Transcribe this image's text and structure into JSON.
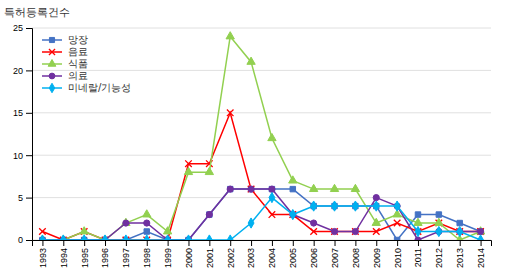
{
  "chart_data": {
    "type": "line",
    "ylabel": "특허등록건수",
    "x": [
      1993,
      1994,
      1995,
      1996,
      1997,
      1998,
      1999,
      2000,
      2001,
      2002,
      2003,
      2004,
      2005,
      2006,
      2007,
      2008,
      2009,
      2010,
      2011,
      2012,
      2013,
      2014
    ],
    "xlim": [
      1992.5,
      2014.5
    ],
    "xticks": [
      1993,
      1994,
      1995,
      1996,
      1997,
      1998,
      1999,
      2000,
      2001,
      2002,
      2003,
      2004,
      2005,
      2006,
      2007,
      2008,
      2009,
      2010,
      2011,
      2012,
      2013,
      2014
    ],
    "ylim": [
      0,
      25
    ],
    "yticks": [
      0,
      5,
      10,
      15,
      20,
      25
    ],
    "grid": true,
    "legend": "upper left",
    "series": [
      {
        "name": "망장",
        "color": "#4472C4",
        "marker": "square",
        "values": [
          0,
          0,
          0,
          0,
          0,
          1,
          0,
          0,
          3,
          6,
          6,
          6,
          6,
          4,
          4,
          4,
          4,
          0,
          3,
          3,
          2,
          1
        ]
      },
      {
        "name": "음료",
        "color": "#FF0000",
        "marker": "x",
        "values": [
          1,
          0,
          1,
          0,
          0,
          0,
          0,
          9,
          9,
          15,
          6,
          3,
          3,
          1,
          1,
          1,
          1,
          2,
          1,
          2,
          1,
          1
        ]
      },
      {
        "name": "식품",
        "color": "#92D050",
        "marker": "triangle",
        "values": [
          0,
          0,
          1,
          0,
          2,
          3,
          1,
          8,
          8,
          24,
          21,
          12,
          7,
          6,
          6,
          6,
          2,
          3,
          2,
          2,
          0,
          1
        ]
      },
      {
        "name": "의료",
        "color": "#7030A0",
        "marker": "circle",
        "values": [
          0,
          0,
          0,
          0,
          2,
          2,
          0,
          0,
          3,
          6,
          6,
          6,
          3,
          2,
          1,
          1,
          5,
          4,
          0,
          1,
          1,
          1
        ]
      },
      {
        "name": "미네랄/기능성",
        "color": "#00B0F0",
        "marker": "diamond",
        "values": [
          0,
          0,
          0,
          0,
          0,
          0,
          0,
          0,
          0,
          0,
          2,
          5,
          3,
          4,
          4,
          4,
          4,
          4,
          1,
          1,
          1,
          0
        ]
      }
    ]
  }
}
